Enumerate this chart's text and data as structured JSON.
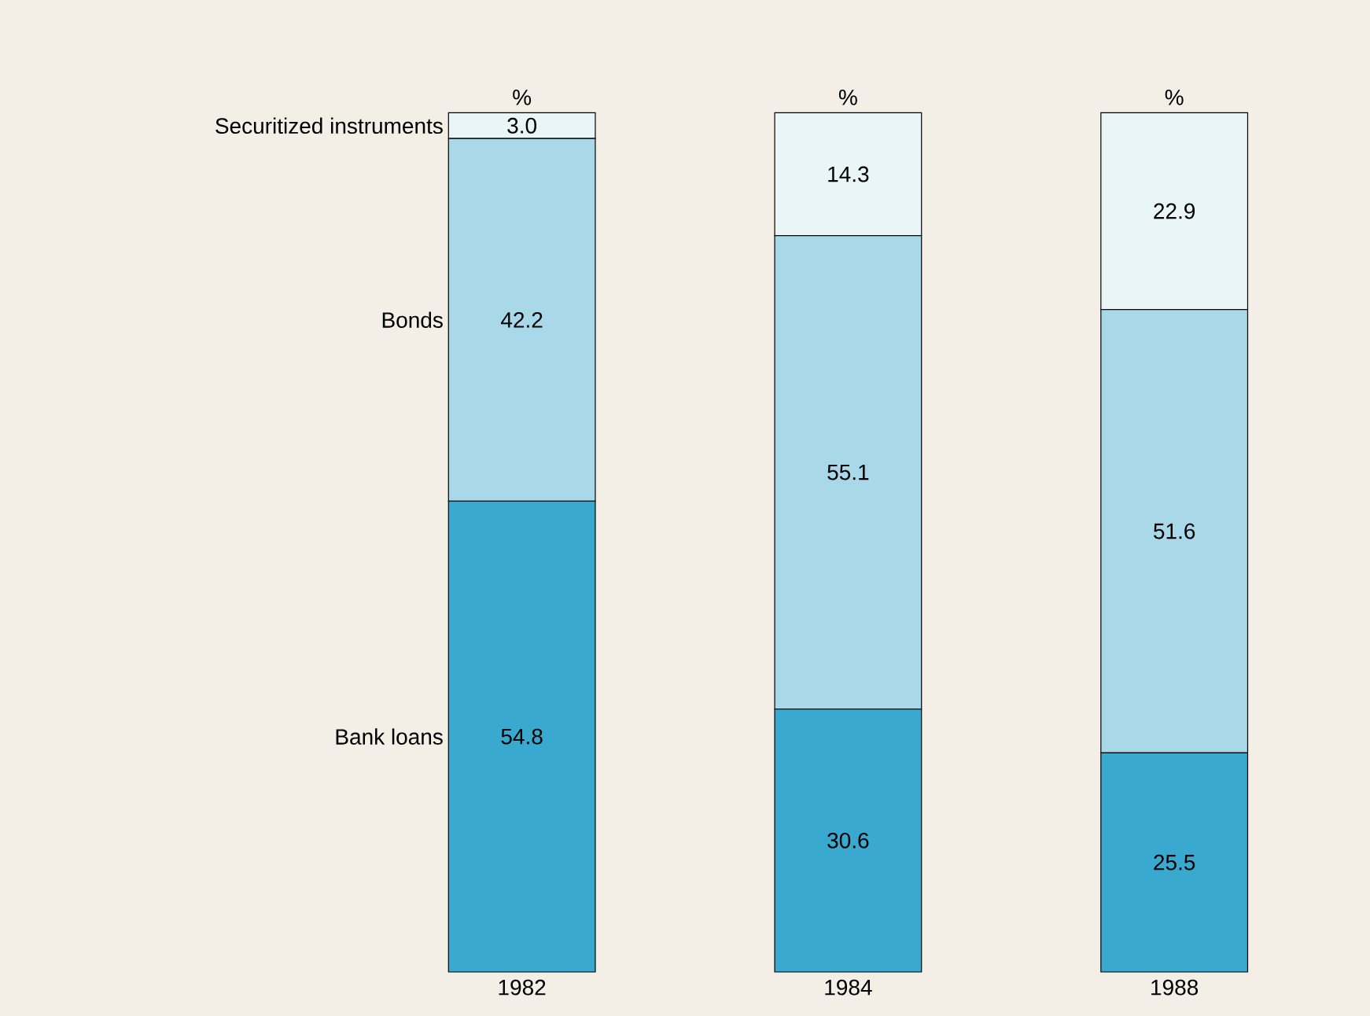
{
  "chart_data": {
    "type": "bar",
    "stacked": true,
    "legend": false,
    "categories": [
      "1982",
      "1984",
      "1988"
    ],
    "series": [
      {
        "name": "Bank loans",
        "color": "#3aa9d0",
        "values": [
          54.8,
          30.6,
          25.5
        ],
        "value_labels": [
          "54.8",
          "30.6",
          "25.5"
        ]
      },
      {
        "name": "Bonds",
        "color": "#a9d9e9",
        "values": [
          42.2,
          55.1,
          51.6
        ],
        "value_labels": [
          "42.2",
          "55.1",
          "51.6"
        ]
      },
      {
        "name": "Securitized instruments",
        "color": "#e9f5f7",
        "values": [
          3.0,
          14.3,
          22.9
        ],
        "value_labels": [
          "3.0",
          "14.3",
          "22.9"
        ]
      }
    ],
    "annotations": [
      "%",
      "%",
      "%"
    ]
  }
}
